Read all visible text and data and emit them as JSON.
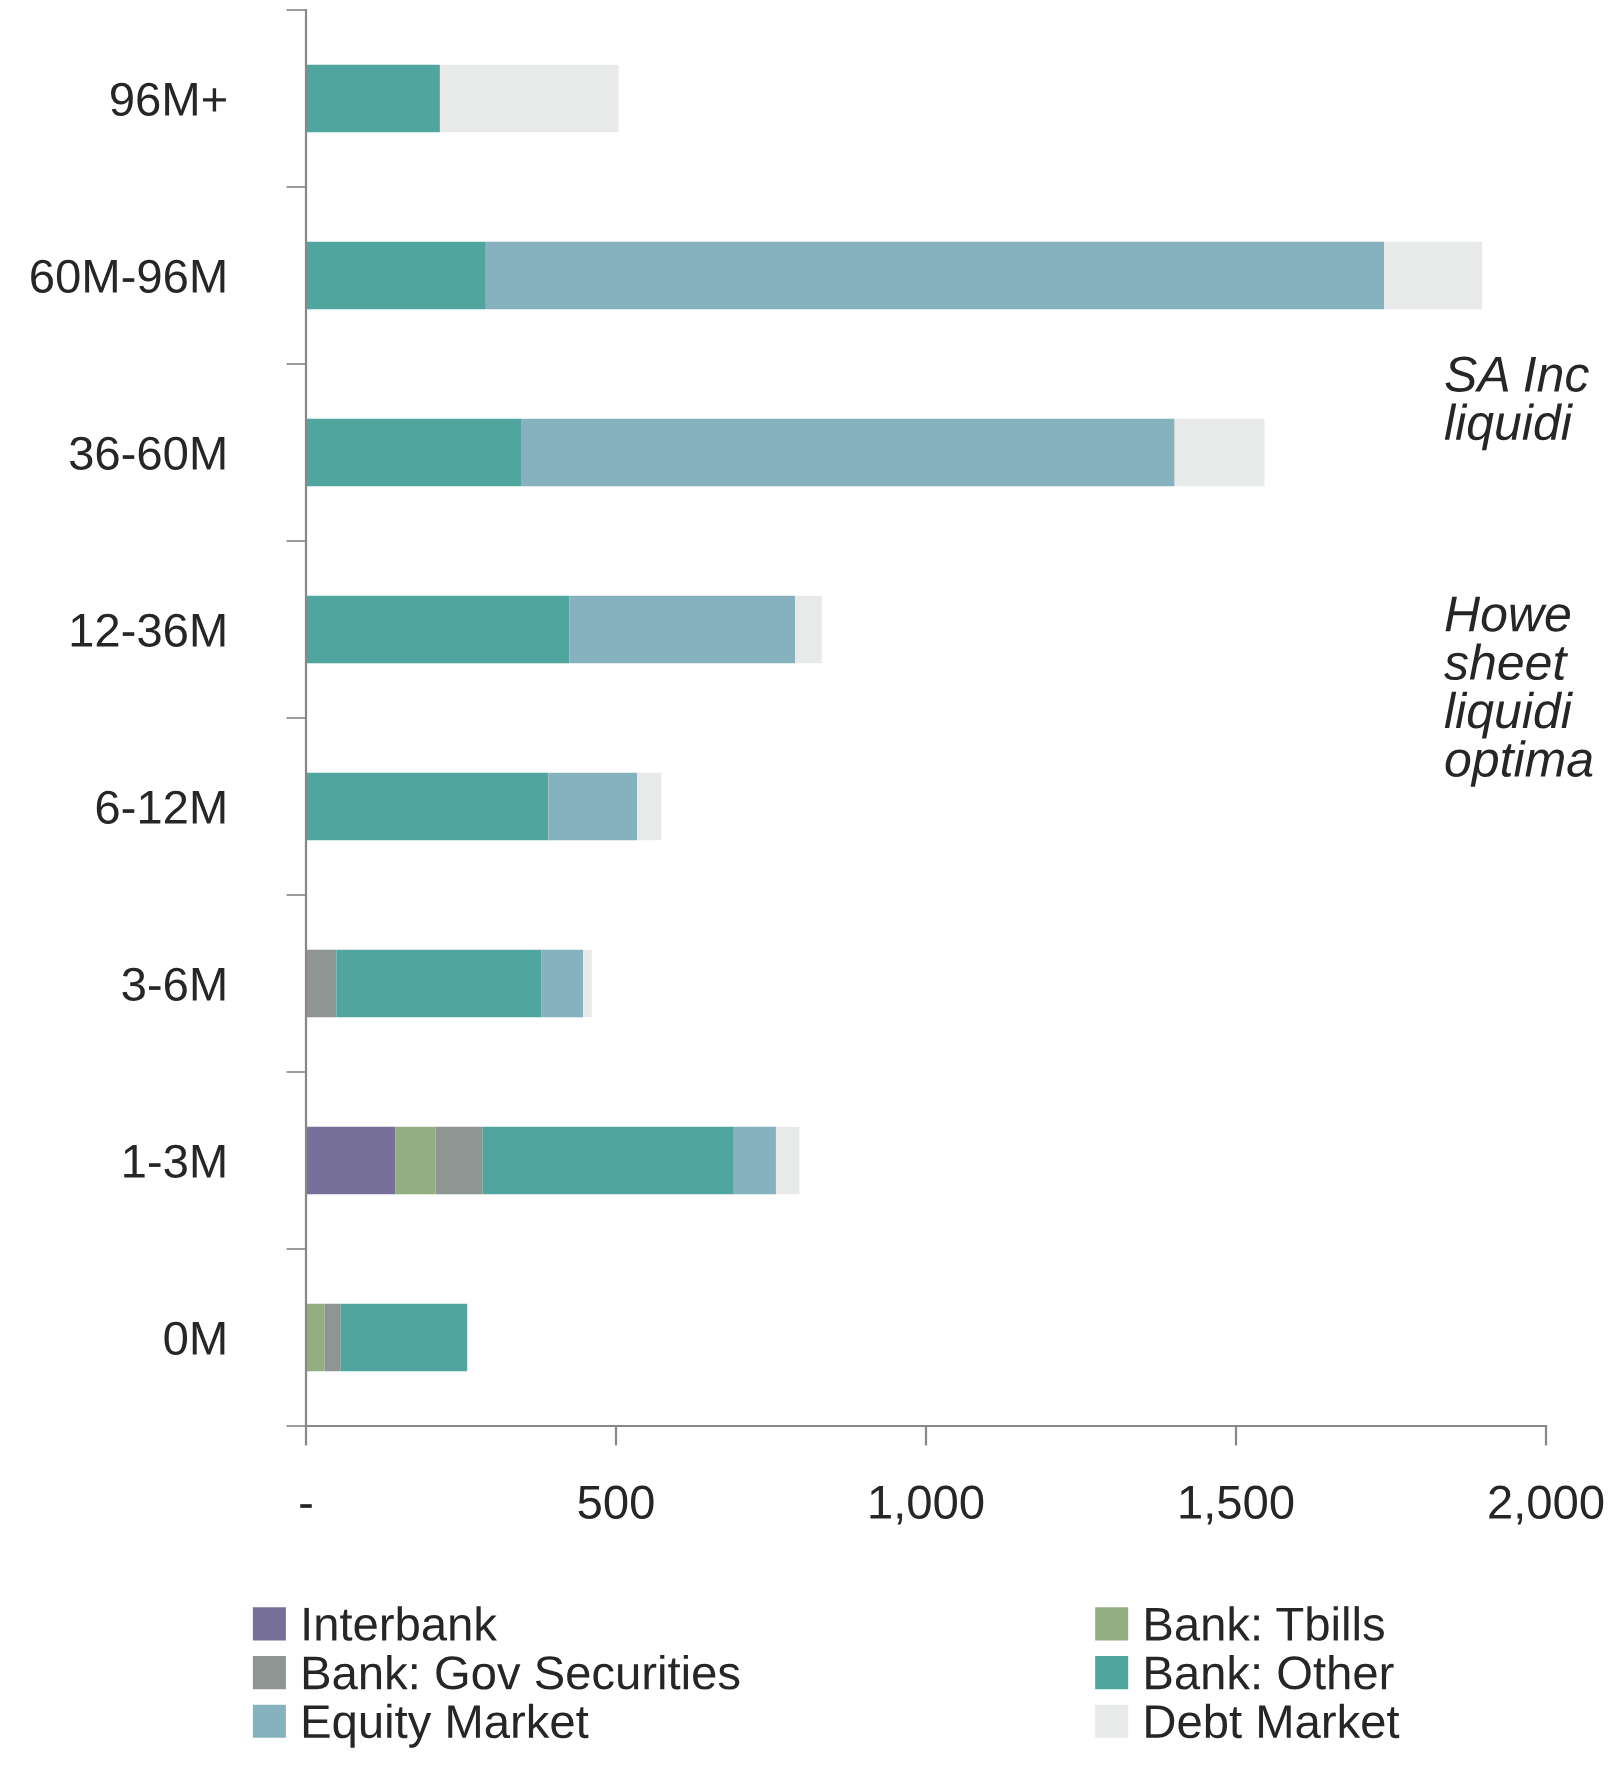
{
  "chart_data": {
    "type": "bar",
    "orientation": "horizontal",
    "stacked": true,
    "categories": [
      "96M+",
      "60M-96M",
      "36-60M",
      "12-36M",
      "6-12M",
      "3-6M",
      "1-3M",
      "0M"
    ],
    "series": [
      {
        "name": "Interbank",
        "color": "#77709a",
        "values": [
          null,
          null,
          null,
          null,
          null,
          null,
          144,
          null
        ]
      },
      {
        "name": "Bank: Tbills",
        "color": "#93ae80",
        "values": [
          null,
          null,
          null,
          null,
          null,
          null,
          65,
          30
        ]
      },
      {
        "name": "Bank: Gov Securities",
        "color": "#8e9593",
        "values": [
          null,
          null,
          null,
          null,
          null,
          49,
          76,
          26
        ]
      },
      {
        "name": "Bank: Other",
        "color": "#50a59e",
        "values": [
          216,
          290,
          348,
          425,
          391,
          331,
          405,
          204
        ]
      },
      {
        "name": "Equity Market",
        "color": "#86b2c0",
        "values": [
          null,
          1449,
          1053,
          364,
          143,
          67,
          68,
          null
        ]
      },
      {
        "name": "Debt Market",
        "color": "#e8eae9",
        "values": [
          288,
          158,
          145,
          43,
          39,
          14,
          38,
          null
        ]
      }
    ],
    "xlim": [
      0,
      2000
    ],
    "xticks": [
      {
        "value": 0,
        "label": "-"
      },
      {
        "value": 500,
        "label": "500"
      },
      {
        "value": 1000,
        "label": "1,000"
      },
      {
        "value": 1500,
        "label": "1,500"
      },
      {
        "value": 2000,
        "label": "2,000"
      }
    ],
    "grid": false,
    "legend": "bottom",
    "annotations": [
      "SA Inc\nliquidi",
      "Howe\nsheet\nliquidi\noptima"
    ]
  }
}
